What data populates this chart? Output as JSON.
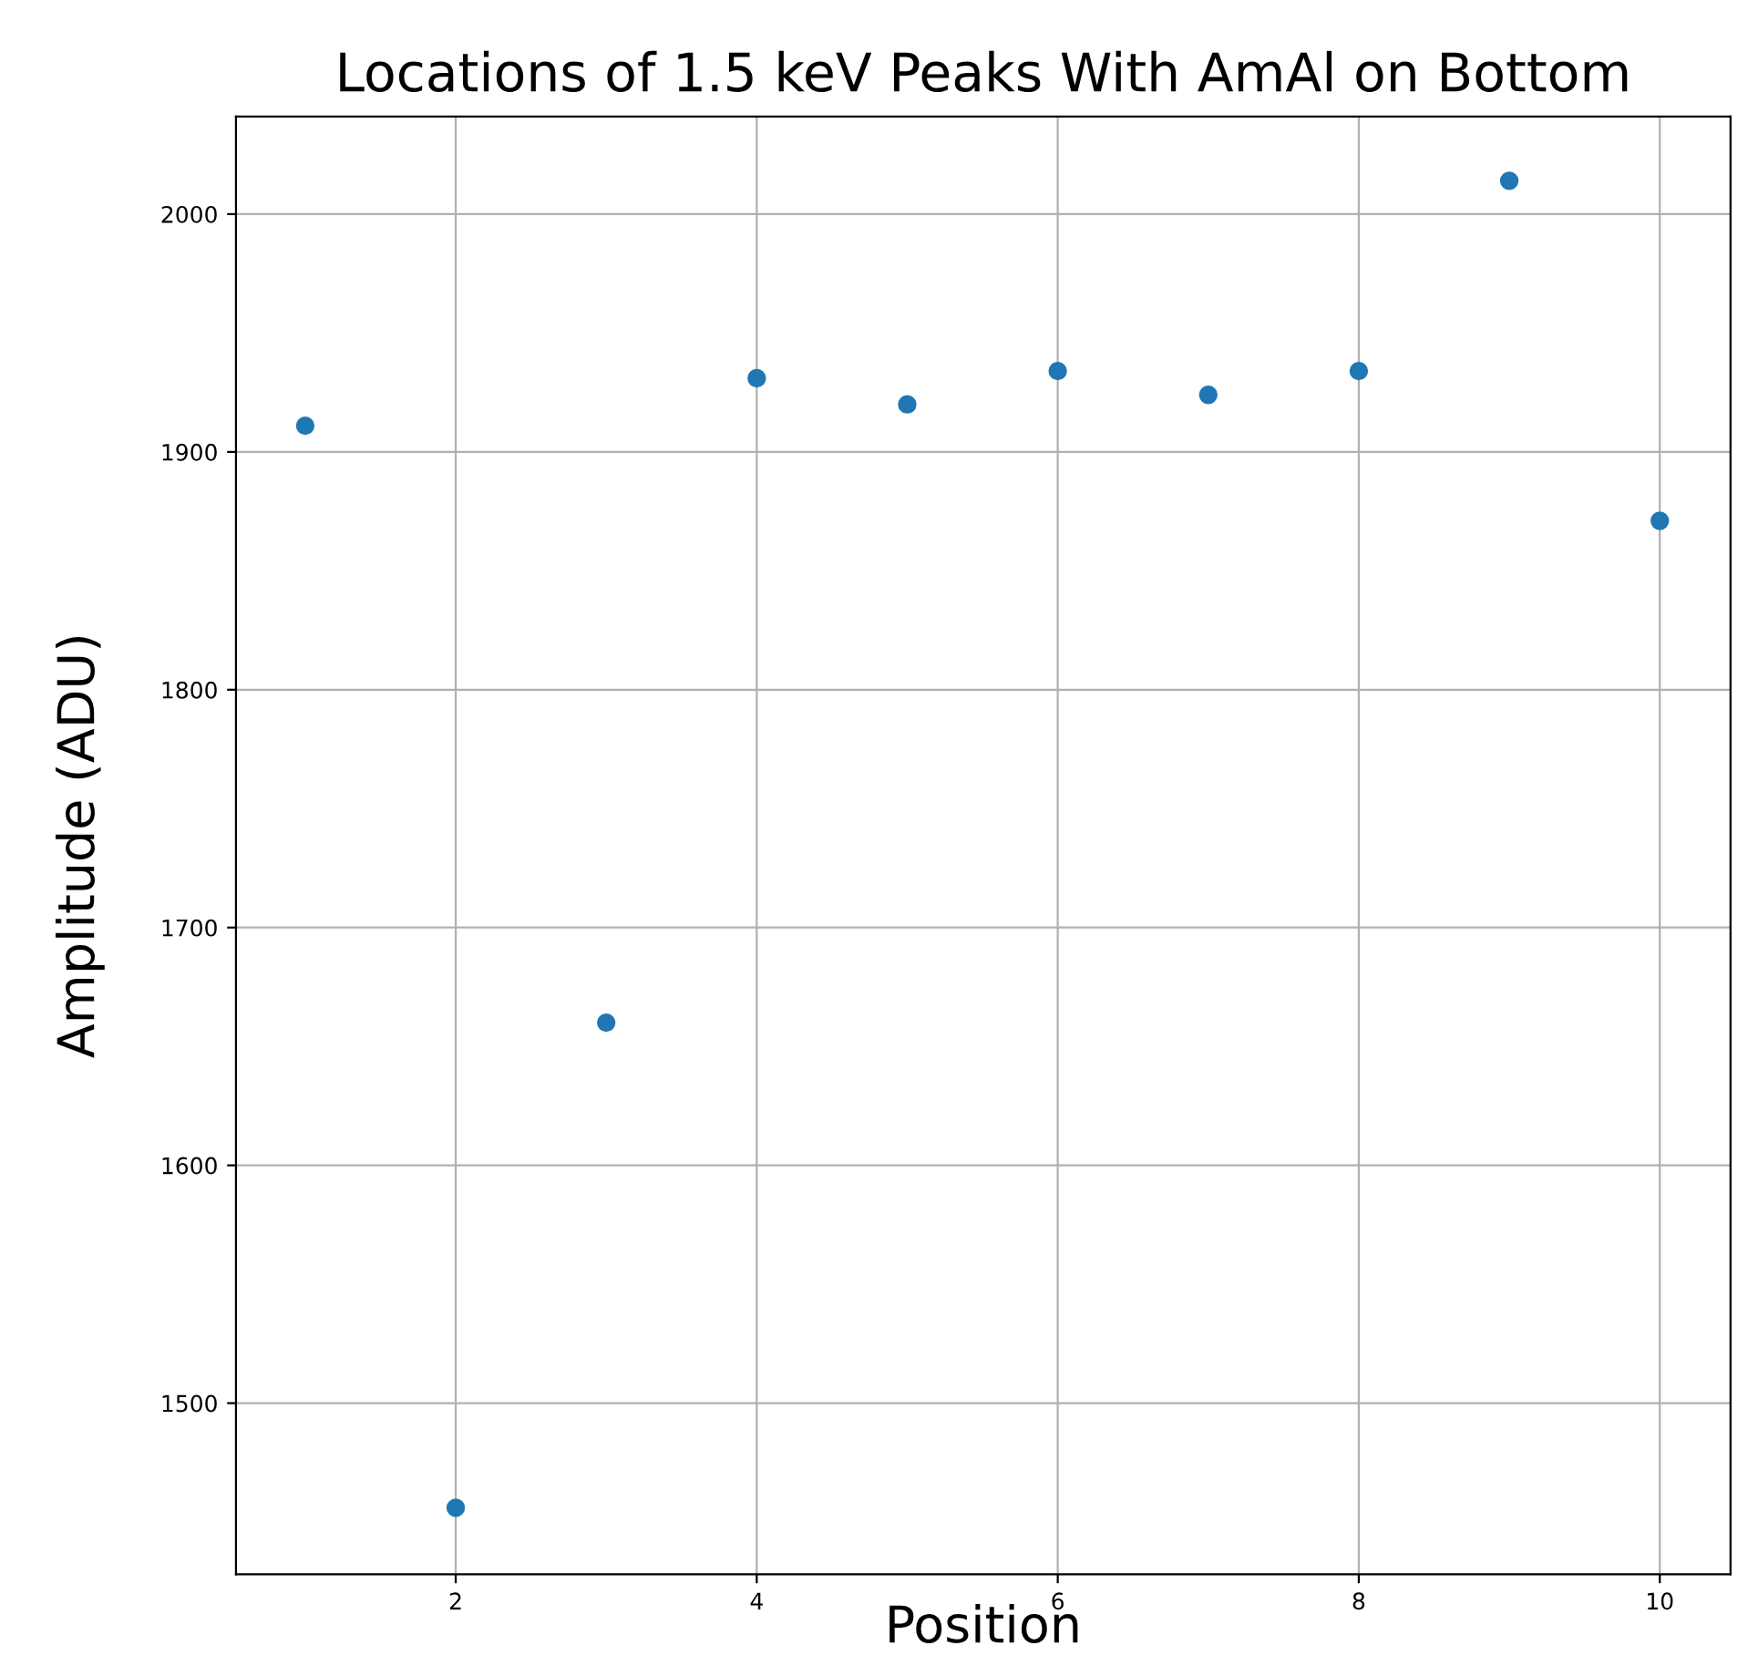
{
  "chart_data": {
    "type": "scatter",
    "title": "Locations of 1.5 keV Peaks With AmAl on Bottom",
    "xlabel": "Position",
    "ylabel": "Amplitude (ADU)",
    "x": [
      1,
      2,
      3,
      4,
      5,
      6,
      7,
      8,
      9,
      10
    ],
    "series": [
      {
        "color": "#1f77b4",
        "values": [
          1911,
          1456,
          1660,
          1931,
          1920,
          1934,
          1924,
          1934,
          2014,
          1871
        ]
      }
    ],
    "xlim": [
      0.54,
      10.47
    ],
    "ylim": [
      1428,
      2041
    ],
    "xticks": [
      2,
      4,
      6,
      8,
      10
    ],
    "yticks": [
      1500,
      1600,
      1700,
      1800,
      1900,
      2000
    ],
    "grid": true,
    "marker": "circle"
  }
}
